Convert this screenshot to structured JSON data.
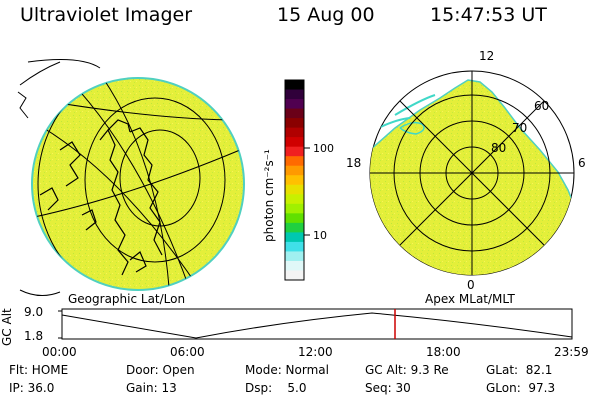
{
  "header": {
    "title": "Ultraviolet Imager",
    "date": "15 Aug 00",
    "time": "15:47:53 UT"
  },
  "colorbar": {
    "unit_label": "photon cm⁻²s⁻¹",
    "ticks": [
      "100",
      "10"
    ],
    "colors": [
      "#000000",
      "#30003a",
      "#500050",
      "#6a0018",
      "#8a0000",
      "#b00000",
      "#d00000",
      "#f02020",
      "#ff6a00",
      "#ff9a00",
      "#ffc000",
      "#e8e000",
      "#c8f000",
      "#a0f000",
      "#60e000",
      "#20d040",
      "#00c8b0",
      "#40e0e8",
      "#a0f0f0",
      "#e0f8f8",
      "#f4f4f4"
    ]
  },
  "left_panel": {
    "label": "Geographic Lat/Lon",
    "fill_color": "#e6f03c"
  },
  "right_panel": {
    "label": "Apex MLat/MLT",
    "lat_labels": [
      "60",
      "70",
      "80"
    ],
    "mlt_labels": [
      "12",
      "18",
      "6",
      "0"
    ]
  },
  "timeline": {
    "axis_label": "GC Alt",
    "y_ticks": [
      "9.0",
      "1.8"
    ],
    "x_ticks": [
      "00:00",
      "06:00",
      "12:00",
      "18:00",
      "23:59"
    ],
    "marker_color": "#cc0000"
  },
  "info": {
    "flt": "Flt: HOME",
    "ip": "IP: 36.0",
    "door": "Door: Open",
    "gain": "Gain: 13",
    "mode": "Mode: Normal",
    "dsp": "Dsp:    5.0",
    "gcalt": "GC Alt: 9.3 Re",
    "seq": "Seq: 30",
    "glat": "GLat:  82.1",
    "glon": "GLon:  97.3"
  }
}
